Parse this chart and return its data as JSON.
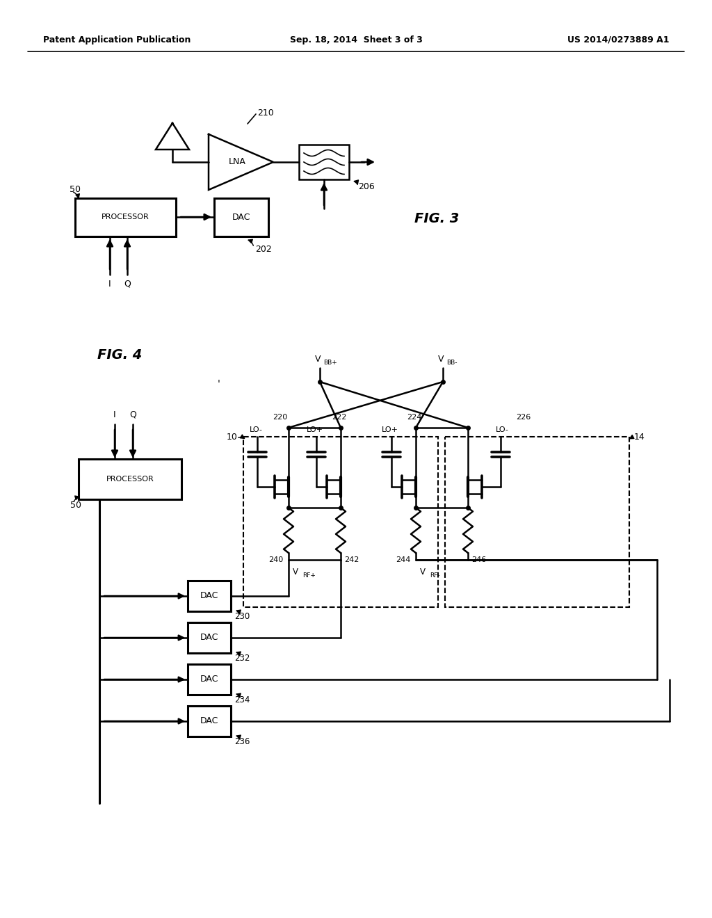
{
  "bg_color": "#ffffff",
  "header_left": "Patent Application Publication",
  "header_center": "Sep. 18, 2014  Sheet 3 of 3",
  "header_right": "US 2014/0273889 A1"
}
